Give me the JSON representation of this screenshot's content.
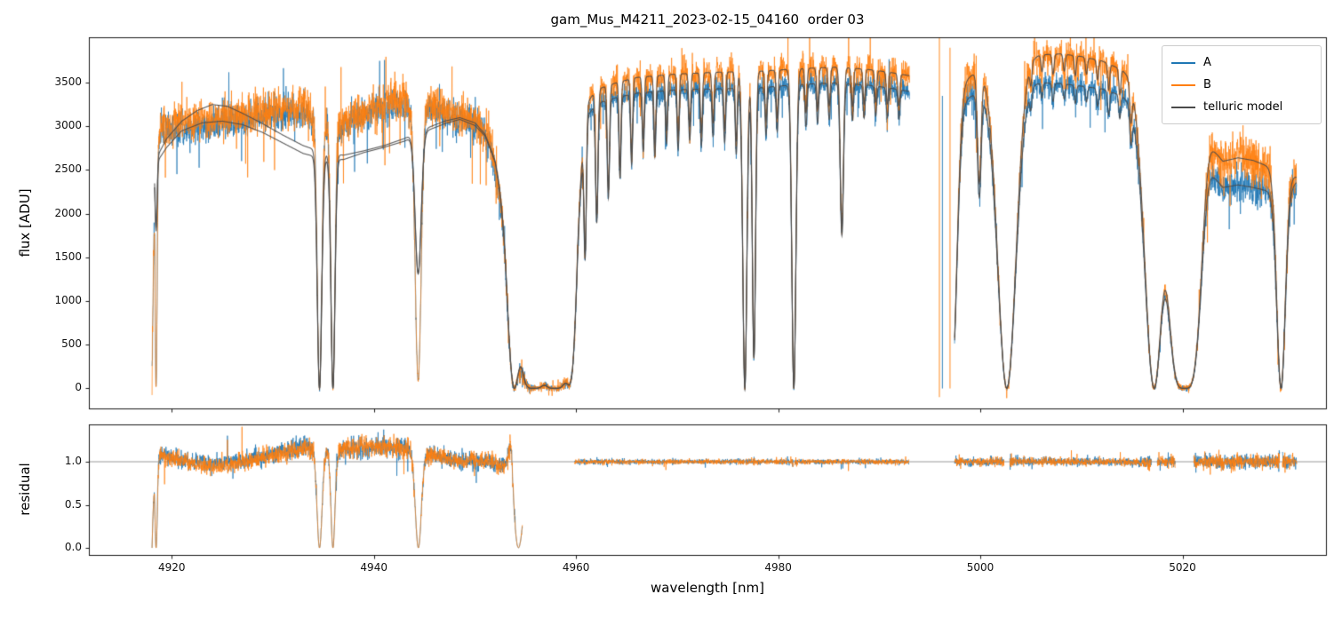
{
  "chart_data": {
    "type": "line",
    "title": "gam_Mus_M4211_2023-02-15_04160  order 03",
    "xlabel": "wavelength [nm]",
    "xlim": [
      4911.8,
      5034.2
    ],
    "xticks": [
      4920,
      4940,
      4960,
      4980,
      5000,
      5020
    ],
    "legend": [
      "A",
      "B",
      "telluric model"
    ],
    "legend_location": "upper right",
    "colors": {
      "A": "#1f77b4",
      "B": "#ff7f0e",
      "telluric": "#4a4a4a"
    },
    "panels": [
      {
        "name": "flux",
        "ylabel": "flux [ADU]",
        "ylim": [
          -230,
          4020
        ],
        "yticks": [
          0,
          500,
          1000,
          1500,
          2000,
          2500,
          3000,
          3500
        ]
      },
      {
        "name": "residual",
        "ylabel": "residual",
        "ylim": [
          -0.082,
          1.433
        ],
        "yticks": [
          0.0,
          0.5,
          1.0
        ],
        "reference_line": 1.0
      }
    ],
    "spectra": {
      "range": [
        4918.05,
        5031.3
      ],
      "model_range": [
        4918.3,
        5031.3
      ],
      "model_left_end": 4956,
      "step": 0.02,
      "gaps": [
        [
          4993.0,
          4997.45
        ]
      ],
      "residual_skips": [
        [
          4954.7,
          4959.85
        ],
        [
          4992.95,
          4997.45
        ]
      ],
      "continuum": {
        "A": [
          [
            4918.05,
            0
          ],
          [
            4918.3,
            2600
          ],
          [
            4919,
            2950
          ],
          [
            4921,
            2980
          ],
          [
            4924,
            3010
          ],
          [
            4927,
            3070
          ],
          [
            4930,
            3140
          ],
          [
            4933,
            3170
          ],
          [
            4935,
            3020
          ],
          [
            4936.5,
            2960
          ],
          [
            4938,
            3090
          ],
          [
            4940,
            3180
          ],
          [
            4942,
            3240
          ],
          [
            4944,
            3260
          ],
          [
            4946,
            3190
          ],
          [
            4948,
            3110
          ],
          [
            4950,
            3040
          ],
          [
            4951.5,
            2790
          ],
          [
            4953,
            1900
          ],
          [
            4954,
            800
          ],
          [
            4955,
            250
          ],
          [
            4956.5,
            120
          ],
          [
            4958,
            120
          ],
          [
            4959.3,
            320
          ],
          [
            4960.2,
            2200
          ],
          [
            4961,
            3100
          ],
          [
            4962,
            3260
          ],
          [
            4964,
            3330
          ],
          [
            4966,
            3380
          ],
          [
            4970,
            3420
          ],
          [
            4974,
            3430
          ],
          [
            4978,
            3440
          ],
          [
            4982,
            3480
          ],
          [
            4986,
            3500
          ],
          [
            4989,
            3470
          ],
          [
            4991,
            3440
          ],
          [
            4993,
            3400
          ],
          [
            4997.5,
            3150
          ],
          [
            4998.3,
            3300
          ],
          [
            5000,
            3400
          ],
          [
            5002,
            3450
          ],
          [
            5004,
            3480
          ],
          [
            5006,
            3500
          ],
          [
            5008,
            3490
          ],
          [
            5010,
            3460
          ],
          [
            5012,
            3430
          ],
          [
            5014,
            3350
          ],
          [
            5015.5,
            3250
          ],
          [
            5017,
            3150
          ],
          [
            5019,
            3050
          ],
          [
            5021,
            2900
          ],
          [
            5022.5,
            2500
          ],
          [
            5024,
            2300
          ],
          [
            5025.5,
            2330
          ],
          [
            5027,
            2300
          ],
          [
            5028.5,
            2260
          ],
          [
            5030,
            2260
          ],
          [
            5031.3,
            2360
          ]
        ],
        "B": [
          [
            4918.05,
            0
          ],
          [
            4918.3,
            2650
          ],
          [
            4919,
            3000
          ],
          [
            4921,
            3040
          ],
          [
            4924,
            3080
          ],
          [
            4927,
            3130
          ],
          [
            4930,
            3200
          ],
          [
            4933,
            3220
          ],
          [
            4935,
            3060
          ],
          [
            4936.5,
            3010
          ],
          [
            4938,
            3140
          ],
          [
            4940,
            3230
          ],
          [
            4942,
            3290
          ],
          [
            4944,
            3310
          ],
          [
            4946,
            3240
          ],
          [
            4948,
            3160
          ],
          [
            4950,
            3090
          ],
          [
            4951.5,
            2840
          ],
          [
            4953,
            1950
          ],
          [
            4954,
            850
          ],
          [
            4955,
            260
          ],
          [
            4956.5,
            130
          ],
          [
            4958,
            130
          ],
          [
            4959.3,
            340
          ],
          [
            4960.2,
            2300
          ],
          [
            4961,
            3250
          ],
          [
            4962,
            3420
          ],
          [
            4964,
            3500
          ],
          [
            4966,
            3560
          ],
          [
            4970,
            3600
          ],
          [
            4974,
            3620
          ],
          [
            4978,
            3630
          ],
          [
            4982,
            3660
          ],
          [
            4986,
            3680
          ],
          [
            4989,
            3650
          ],
          [
            4991,
            3620
          ],
          [
            4993,
            3580
          ],
          [
            4997.5,
            3350
          ],
          [
            4998.3,
            3520
          ],
          [
            5000,
            3650
          ],
          [
            5002,
            3700
          ],
          [
            5004,
            3780
          ],
          [
            5006,
            3820
          ],
          [
            5008,
            3830
          ],
          [
            5010,
            3800
          ],
          [
            5012,
            3750
          ],
          [
            5014,
            3650
          ],
          [
            5015.5,
            3550
          ],
          [
            5017,
            3450
          ],
          [
            5019,
            3350
          ],
          [
            5021,
            3150
          ],
          [
            5022.5,
            2800
          ],
          [
            5024,
            2600
          ],
          [
            5025.5,
            2640
          ],
          [
            5027,
            2610
          ],
          [
            5028.5,
            2540
          ],
          [
            5030,
            2470
          ],
          [
            5031.3,
            2420
          ]
        ]
      },
      "model_continuum_left": {
        "A": [
          [
            4918.3,
            2550
          ],
          [
            4919.5,
            2760
          ],
          [
            4921,
            2950
          ],
          [
            4923,
            3040
          ],
          [
            4925,
            3060
          ],
          [
            4927,
            3020
          ],
          [
            4929,
            2930
          ],
          [
            4931,
            2810
          ],
          [
            4933,
            2690
          ],
          [
            4935,
            2630
          ],
          [
            4937,
            2620
          ],
          [
            4939,
            2700
          ],
          [
            4941,
            2760
          ],
          [
            4943,
            2830
          ],
          [
            4945,
            2940
          ],
          [
            4947,
            3030
          ],
          [
            4948.5,
            3080
          ],
          [
            4950,
            3010
          ],
          [
            4951,
            2890
          ],
          [
            4952,
            2590
          ],
          [
            4953,
            1980
          ],
          [
            4954,
            1000
          ],
          [
            4955,
            300
          ],
          [
            4956,
            130
          ]
        ],
        "B": [
          [
            4918.3,
            2600
          ],
          [
            4919.5,
            2860
          ],
          [
            4921,
            3060
          ],
          [
            4922.5,
            3180
          ],
          [
            4924,
            3250
          ],
          [
            4925.5,
            3230
          ],
          [
            4927,
            3150
          ],
          [
            4929,
            3030
          ],
          [
            4931,
            2900
          ],
          [
            4933,
            2780
          ],
          [
            4935,
            2700
          ],
          [
            4937,
            2670
          ],
          [
            4939,
            2720
          ],
          [
            4941,
            2780
          ],
          [
            4943,
            2860
          ],
          [
            4945,
            2970
          ],
          [
            4947,
            3060
          ],
          [
            4948.5,
            3100
          ],
          [
            4950,
            3040
          ],
          [
            4951,
            2910
          ],
          [
            4952,
            2610
          ],
          [
            4953,
            2020
          ],
          [
            4954,
            1030
          ],
          [
            4955,
            310
          ],
          [
            4956,
            140
          ]
        ]
      },
      "telluric_lines": [
        [
          4918.45,
          0.1,
          1.0,
          0.3
        ],
        [
          4934.62,
          0.22,
          1.0
        ],
        [
          4935.95,
          0.2,
          1.0
        ],
        [
          4944.38,
          0.3,
          0.97,
          0.55
        ],
        [
          4953.9,
          0.55,
          1.0
        ],
        [
          4955.8,
          0.95,
          1.0,
          1.0,
          4
        ],
        [
          4957.9,
          0.95,
          1.0,
          1.0,
          4
        ],
        [
          4959.4,
          0.5,
          0.9
        ],
        [
          4960.9,
          0.12,
          0.5
        ],
        [
          4962.05,
          0.12,
          0.42
        ],
        [
          4963.2,
          0.11,
          0.34
        ],
        [
          4964.35,
          0.1,
          0.28
        ],
        [
          4965.5,
          0.1,
          0.24
        ],
        [
          4966.65,
          0.1,
          0.2
        ],
        [
          4967.8,
          0.1,
          0.22
        ],
        [
          4968.95,
          0.1,
          0.18
        ],
        [
          4970.1,
          0.1,
          0.2
        ],
        [
          4971.25,
          0.1,
          0.17
        ],
        [
          4972.4,
          0.1,
          0.19
        ],
        [
          4973.55,
          0.1,
          0.16
        ],
        [
          4974.7,
          0.1,
          0.18
        ],
        [
          4975.85,
          0.1,
          0.22
        ],
        [
          4976.7,
          0.2,
          1.0
        ],
        [
          4977.6,
          0.16,
          0.9
        ],
        [
          4978.8,
          0.1,
          0.16
        ],
        [
          4979.9,
          0.1,
          0.15
        ],
        [
          4981.55,
          0.2,
          1.0
        ],
        [
          4982.75,
          0.1,
          0.14
        ],
        [
          4983.9,
          0.1,
          0.13
        ],
        [
          4985.05,
          0.1,
          0.12
        ],
        [
          4986.3,
          0.16,
          0.5
        ],
        [
          4987.35,
          0.1,
          0.12
        ],
        [
          4988.5,
          0.1,
          0.11
        ],
        [
          4989.65,
          0.1,
          0.1
        ],
        [
          4990.8,
          0.1,
          0.1
        ],
        [
          4991.95,
          0.1,
          0.1
        ],
        [
          4997.15,
          0.5,
          1.0
        ],
        [
          4999.9,
          0.18,
          0.35
        ],
        [
          5002.62,
          0.9,
          1.0
        ],
        [
          5005.0,
          0.1,
          0.06
        ],
        [
          5006.1,
          0.1,
          0.05
        ],
        [
          5007.2,
          0.1,
          0.06
        ],
        [
          5008.3,
          0.1,
          0.05
        ],
        [
          5009.4,
          0.1,
          0.06
        ],
        [
          5010.5,
          0.1,
          0.05
        ],
        [
          5011.6,
          0.1,
          0.06
        ],
        [
          5012.7,
          0.1,
          0.08
        ],
        [
          5013.8,
          0.1,
          0.08
        ],
        [
          5014.9,
          0.12,
          0.12
        ],
        [
          5017.2,
          0.9,
          1.0
        ],
        [
          5020.2,
          1.6,
          1.0,
          1.0,
          4
        ],
        [
          5029.75,
          0.42,
          1.0
        ]
      ],
      "residual_dips": [
        [
          4918.45,
          0.12
        ],
        [
          4934.62,
          0.25
        ],
        [
          4935.95,
          0.2
        ],
        [
          4944.4,
          0.3
        ],
        [
          4954.3,
          0.45
        ]
      ],
      "residual_spikes": [
        [
          4953.55,
          0.22,
          0.48
        ]
      ],
      "noise_flux": [
        [
          4911,
          4956,
          85,
          105
        ],
        [
          4956,
          4993.5,
          55,
          75
        ],
        [
          4993.5,
          5022,
          65,
          90
        ],
        [
          5022,
          5035,
          95,
          135
        ]
      ],
      "noise_residual": [
        [
          4911,
          4956,
          0.045
        ],
        [
          4956,
          4993.5,
          0.013
        ],
        [
          4993.5,
          5022,
          0.02
        ],
        [
          5022,
          5035,
          0.035
        ]
      ],
      "artifact_spikes": [
        [
          4995.95,
          "B",
          -100,
          4020
        ],
        [
          4996.25,
          "A",
          0,
          3350
        ],
        [
          4997.0,
          "B",
          0,
          3900
        ]
      ]
    }
  }
}
